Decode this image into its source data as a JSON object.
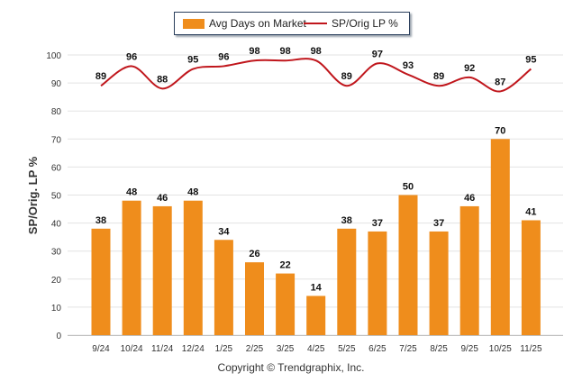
{
  "chart_data": {
    "type": "bar",
    "title": "",
    "xlabel": "",
    "ylabel": "SP/Orig. LP %",
    "ylim": [
      0,
      100
    ],
    "yticks": [
      0,
      10,
      20,
      30,
      40,
      50,
      60,
      70,
      80,
      90,
      100
    ],
    "grid": true,
    "legend_position": "top-center",
    "categories": [
      "9/24",
      "10/24",
      "11/24",
      "12/24",
      "1/25",
      "2/25",
      "3/25",
      "4/25",
      "5/25",
      "6/25",
      "7/25",
      "8/25",
      "9/25",
      "10/25",
      "11/25"
    ],
    "series": [
      {
        "name": "Avg Days on Market",
        "type": "bar",
        "color": "#ef8d1c",
        "values": [
          38,
          48,
          46,
          48,
          34,
          26,
          22,
          14,
          38,
          37,
          50,
          37,
          46,
          70,
          41
        ]
      },
      {
        "name": "SP/Orig LP %",
        "type": "line",
        "color": "#c0161c",
        "values": [
          89,
          96,
          88,
          95,
          96,
          98,
          98,
          98,
          89,
          97,
          93,
          89,
          92,
          87,
          95
        ]
      }
    ]
  },
  "legend": {
    "item1": "Avg Days on Market",
    "item2": "SP/Orig LP %"
  },
  "footer": {
    "copyright": "Copyright © Trendgraphix, Inc."
  }
}
